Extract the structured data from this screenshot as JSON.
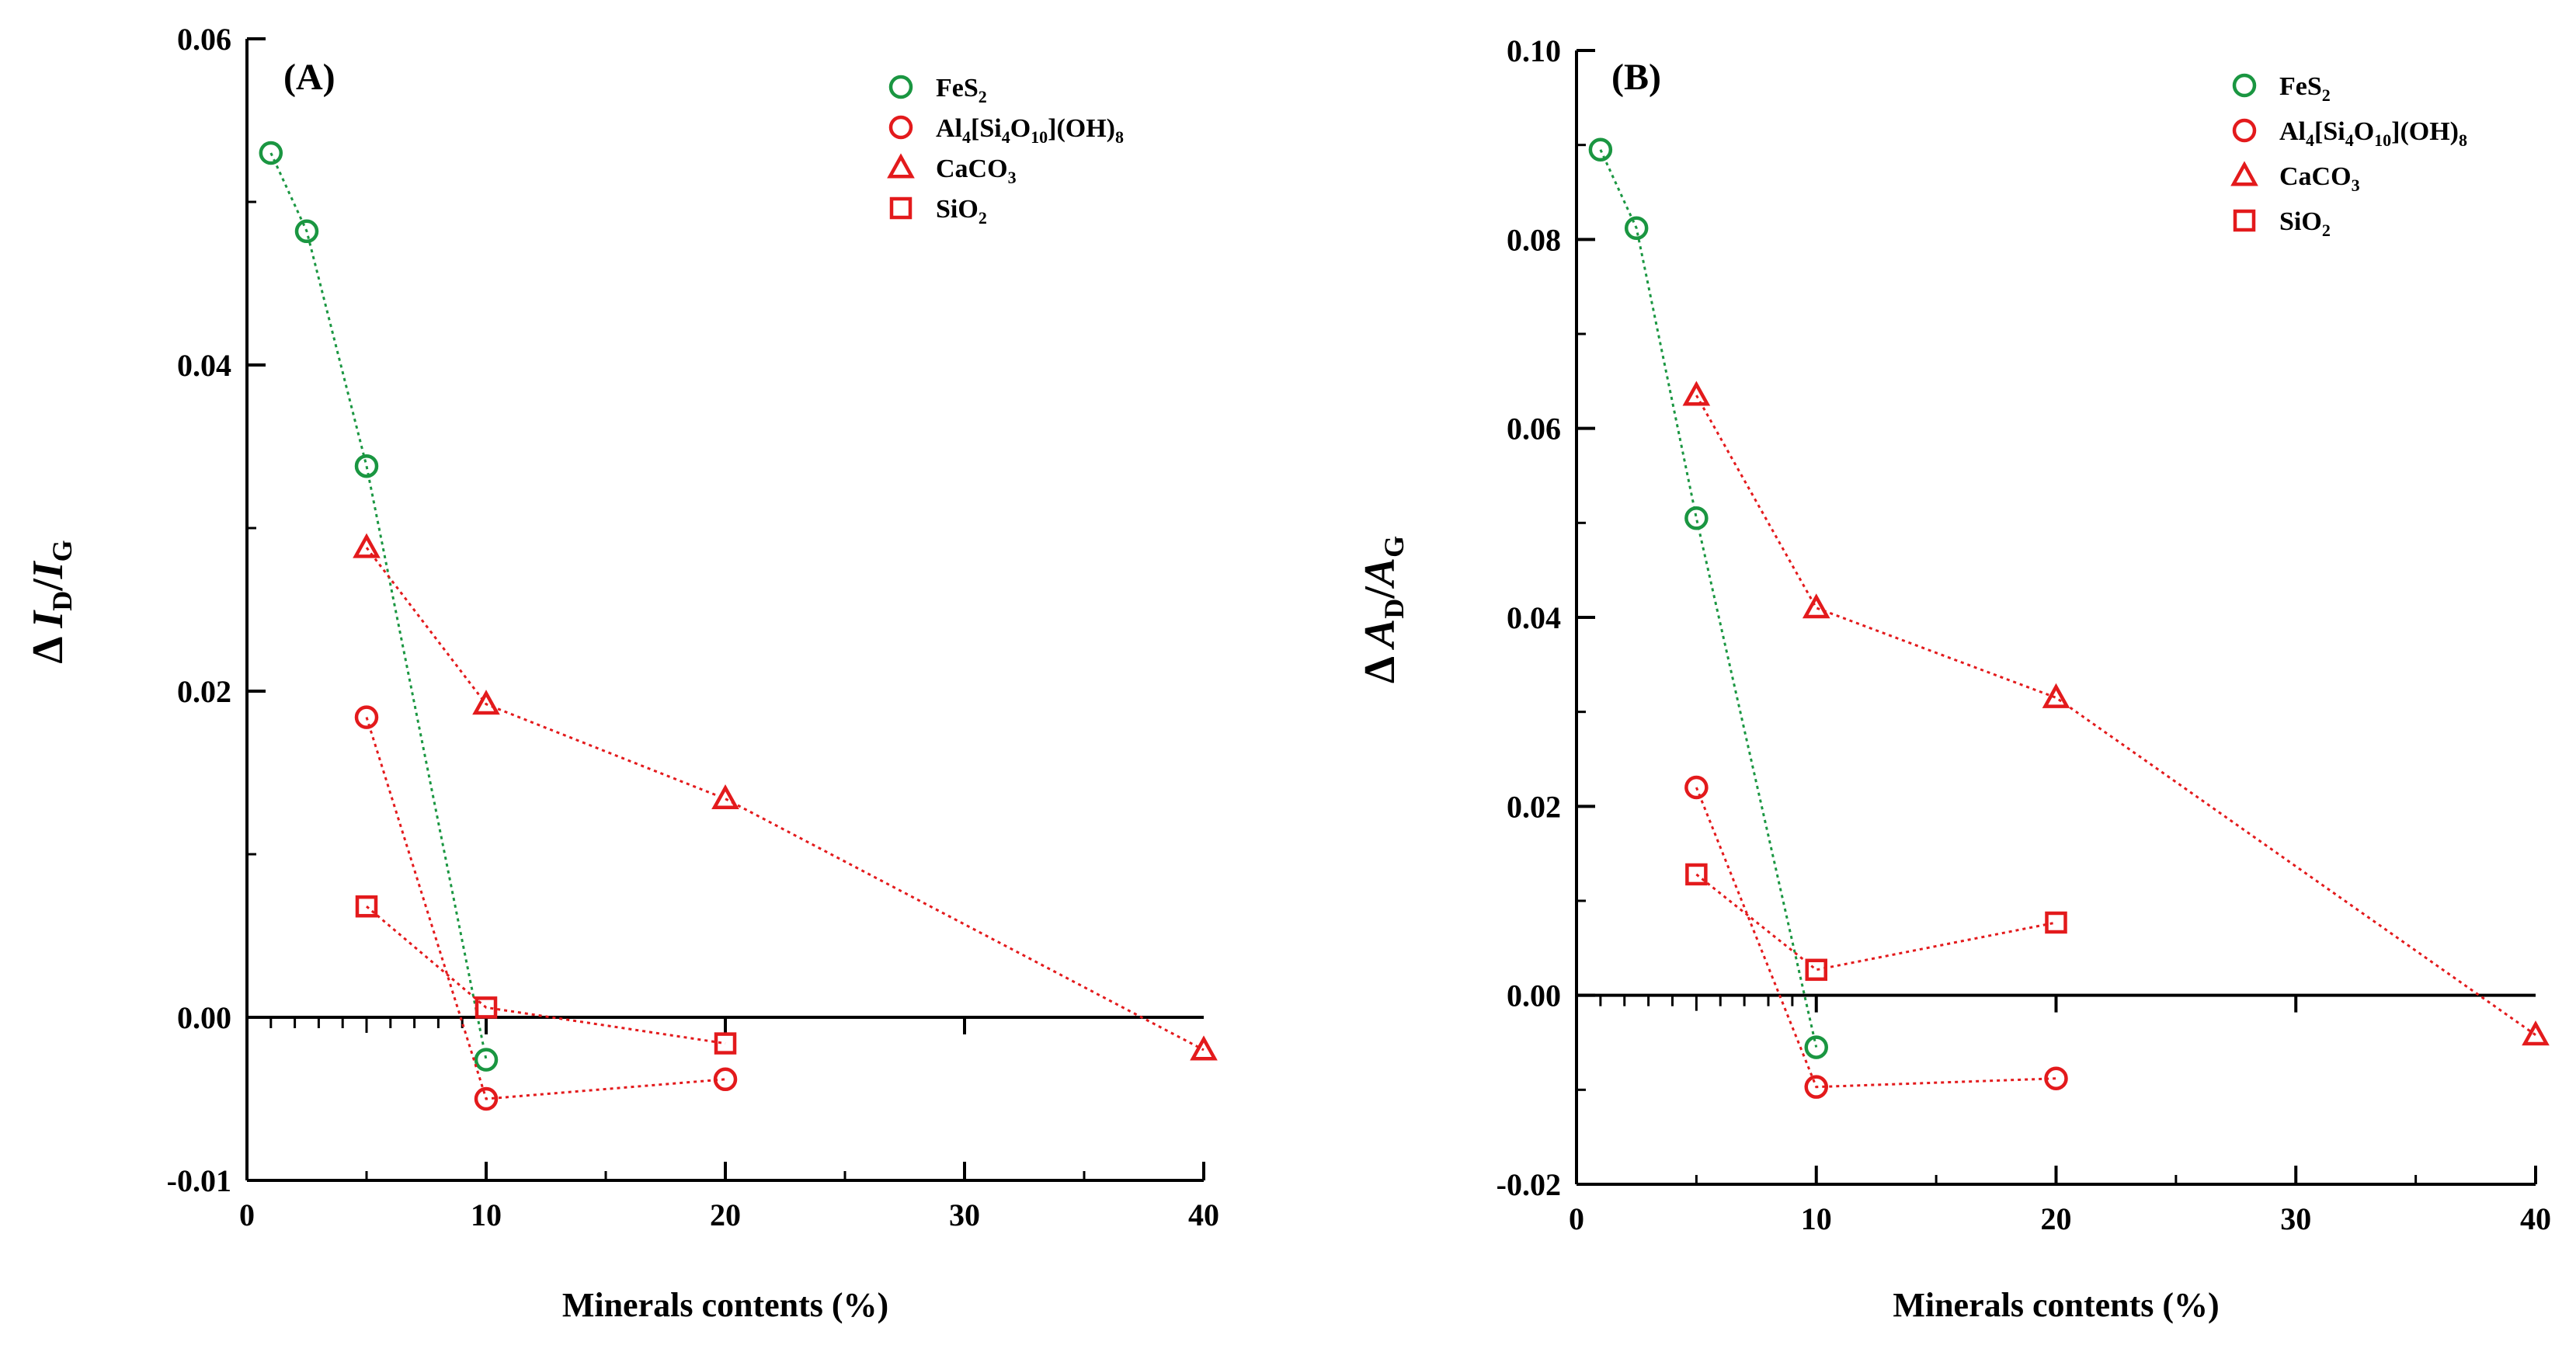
{
  "chart_data": [
    {
      "type": "scatter",
      "panel_label": "(A)",
      "xlabel": "Minerals contents (%)",
      "ylabel": {
        "delta": "Δ",
        "num_var": "I",
        "num_sub": "D",
        "slash": "/",
        "den_var": "I",
        "den_sub": "G"
      },
      "xlim": [
        0,
        40
      ],
      "ylim": [
        -0.01,
        0.06
      ],
      "x_ticks": [
        0,
        10,
        20,
        30,
        40
      ],
      "x_tick_labels": [
        "0",
        "10",
        "20",
        "30",
        "40"
      ],
      "y_ticks": [
        -0.01,
        0.0,
        0.02,
        0.04,
        0.06
      ],
      "y_tick_labels": [
        "-0.01",
        "0.00",
        "0.02",
        "0.04",
        "0.06"
      ],
      "grid": false,
      "legend_position": "top-right",
      "series": [
        {
          "key": "fes2",
          "name": "FeS2",
          "label_parts": [
            {
              "t": "FeS"
            },
            {
              "t": "2",
              "sub": true
            }
          ],
          "marker": "circle",
          "color": "#1a9641",
          "line_color": "#1a9641",
          "x": [
            1,
            2.5,
            5,
            10
          ],
          "y": [
            0.053,
            0.0482,
            0.0338,
            -0.0026
          ]
        },
        {
          "key": "kaolinite",
          "name": "Al4[Si4O10](OH)8",
          "label_parts": [
            {
              "t": "Al"
            },
            {
              "t": "4",
              "sub": true
            },
            {
              "t": "[Si"
            },
            {
              "t": "4",
              "sub": true
            },
            {
              "t": "O"
            },
            {
              "t": "10",
              "sub": true
            },
            {
              "t": "](OH)"
            },
            {
              "t": "8",
              "sub": true
            }
          ],
          "marker": "circle",
          "color": "#e31a1c",
          "line_color": "#e31a1c",
          "x": [
            5,
            10,
            20
          ],
          "y": [
            0.0184,
            -0.005,
            -0.0038
          ]
        },
        {
          "key": "caco3",
          "name": "CaCO3",
          "label_parts": [
            {
              "t": "CaCO"
            },
            {
              "t": "3",
              "sub": true
            }
          ],
          "marker": "triangle",
          "color": "#e31a1c",
          "line_color": "#e31a1c",
          "x": [
            5,
            10,
            20,
            40
          ],
          "y": [
            0.0288,
            0.0192,
            0.0134,
            -0.002
          ]
        },
        {
          "key": "sio2",
          "name": "SiO2",
          "label_parts": [
            {
              "t": "SiO"
            },
            {
              "t": "2",
              "sub": true
            }
          ],
          "marker": "square",
          "color": "#e31a1c",
          "line_color": "#e31a1c",
          "x": [
            5,
            10,
            20
          ],
          "y": [
            0.0068,
            0.0006,
            -0.0016
          ]
        }
      ]
    },
    {
      "type": "scatter",
      "panel_label": "(B)",
      "xlabel": "Minerals contents (%)",
      "ylabel": {
        "delta": "Δ",
        "num_var": "A",
        "num_sub": "D",
        "slash": "/",
        "den_var": "A",
        "den_sub": "G"
      },
      "xlim": [
        0,
        40
      ],
      "ylim": [
        -0.02,
        0.1
      ],
      "x_ticks": [
        0,
        10,
        20,
        30,
        40
      ],
      "x_tick_labels": [
        "0",
        "10",
        "20",
        "30",
        "40"
      ],
      "y_ticks": [
        -0.02,
        0.0,
        0.02,
        0.04,
        0.06,
        0.08,
        0.1
      ],
      "y_tick_labels": [
        "-0.02",
        "0.00",
        "0.02",
        "0.04",
        "0.06",
        "0.08",
        "0.10"
      ],
      "grid": false,
      "legend_position": "top-right",
      "series": [
        {
          "key": "fes2",
          "name": "FeS2",
          "label_parts": [
            {
              "t": "FeS"
            },
            {
              "t": "2",
              "sub": true
            }
          ],
          "marker": "circle",
          "color": "#1a9641",
          "line_color": "#1a9641",
          "x": [
            1,
            2.5,
            5,
            10
          ],
          "y": [
            0.0895,
            0.0812,
            0.0505,
            -0.0055
          ]
        },
        {
          "key": "kaolinite",
          "name": "Al4[Si4O10](OH)8",
          "label_parts": [
            {
              "t": "Al"
            },
            {
              "t": "4",
              "sub": true
            },
            {
              "t": "[Si"
            },
            {
              "t": "4",
              "sub": true
            },
            {
              "t": "O"
            },
            {
              "t": "10",
              "sub": true
            },
            {
              "t": "](OH)"
            },
            {
              "t": "8",
              "sub": true
            }
          ],
          "marker": "circle",
          "color": "#e31a1c",
          "line_color": "#e31a1c",
          "x": [
            5,
            10,
            20
          ],
          "y": [
            0.022,
            -0.0097,
            -0.0088
          ]
        },
        {
          "key": "caco3",
          "name": "CaCO3",
          "label_parts": [
            {
              "t": "CaCO"
            },
            {
              "t": "3",
              "sub": true
            }
          ],
          "marker": "triangle",
          "color": "#e31a1c",
          "line_color": "#e31a1c",
          "x": [
            5,
            10,
            20,
            40
          ],
          "y": [
            0.0635,
            0.041,
            0.0315,
            -0.0042
          ]
        },
        {
          "key": "sio2",
          "name": "SiO2",
          "label_parts": [
            {
              "t": "SiO"
            },
            {
              "t": "2",
              "sub": true
            }
          ],
          "marker": "square",
          "color": "#e31a1c",
          "line_color": "#e31a1c",
          "x": [
            5,
            10,
            20
          ],
          "y": [
            0.0128,
            0.0027,
            0.0077
          ]
        }
      ]
    }
  ]
}
